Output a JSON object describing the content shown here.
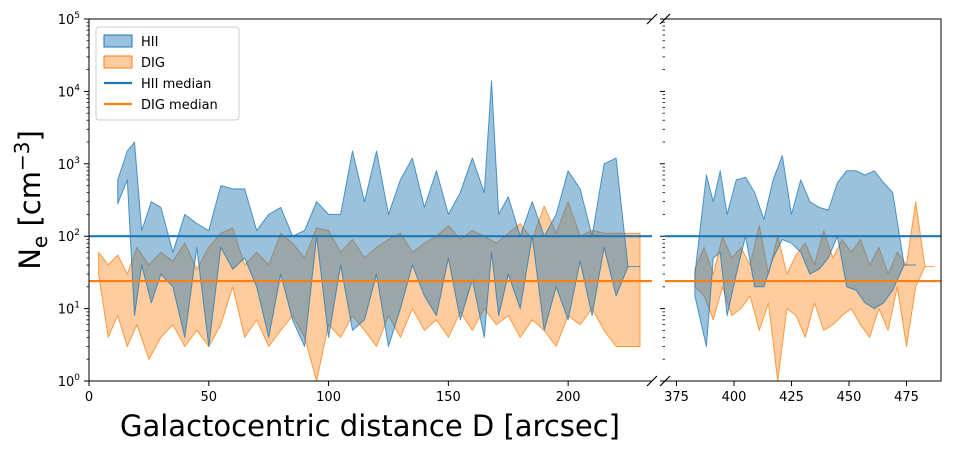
{
  "chart_data": {
    "type": "area",
    "xlabel": "Galactocentric distance D [arcsec]",
    "ylabel_base": "N",
    "ylabel_sub": "e",
    "ylabel_unit_pre": " [cm",
    "ylabel_unit_sup": "−3",
    "ylabel_unit_post": "]",
    "yscale": "log",
    "ylim": [
      1,
      100000
    ],
    "y_ticks": [
      {
        "value": 1,
        "base": "10",
        "exp": "0"
      },
      {
        "value": 10,
        "base": "10",
        "exp": "1"
      },
      {
        "value": 100,
        "base": "10",
        "exp": "2"
      },
      {
        "value": 1000,
        "base": "10",
        "exp": "3"
      },
      {
        "value": 10000,
        "base": "10",
        "exp": "4"
      },
      {
        "value": 100000,
        "base": "10",
        "exp": "5"
      }
    ],
    "broken_x_axis": true,
    "left_panel": {
      "xlim": [
        0,
        235
      ],
      "x_ticks": [
        0,
        50,
        100,
        150,
        200
      ]
    },
    "right_panel": {
      "xlim": [
        370,
        490
      ],
      "x_ticks": [
        375,
        400,
        425,
        450,
        475
      ]
    },
    "legend": {
      "position": "upper left",
      "entries": [
        {
          "label": "HII",
          "kind": "area",
          "color": "#1f77b4"
        },
        {
          "label": "DIG",
          "kind": "area",
          "color": "#ff7f0e"
        },
        {
          "label": "HII median",
          "kind": "line",
          "color": "#1f77b4"
        },
        {
          "label": "DIG median",
          "kind": "line",
          "color": "#ff7f0e"
        }
      ]
    },
    "medians": {
      "HII": 100,
      "DIG": 24
    },
    "colors": {
      "HII": "#1f77b4",
      "DIG": "#ff7f0e"
    },
    "series": [
      {
        "name": "HII",
        "panel": "left",
        "x": [
          12,
          16,
          19,
          22,
          26,
          30,
          35,
          40,
          45,
          50,
          55,
          60,
          65,
          70,
          75,
          80,
          85,
          90,
          95,
          100,
          105,
          110,
          115,
          120,
          125,
          130,
          135,
          140,
          145,
          150,
          155,
          160,
          165,
          168,
          171,
          175,
          180,
          185,
          190,
          195,
          200,
          205,
          210,
          215,
          220,
          225,
          230
        ],
        "lower": [
          280,
          600,
          8,
          40,
          12,
          30,
          20,
          4,
          70,
          3,
          70,
          35,
          50,
          20,
          4,
          30,
          7,
          3,
          100,
          4,
          40,
          5,
          7,
          30,
          3,
          10,
          40,
          15,
          8,
          50,
          7,
          25,
          4,
          60,
          8,
          30,
          10,
          100,
          5,
          20,
          7,
          45,
          8,
          70,
          15,
          38,
          38
        ],
        "upper": [
          600,
          1500,
          2000,
          120,
          300,
          250,
          60,
          200,
          150,
          120,
          500,
          450,
          450,
          120,
          200,
          250,
          100,
          120,
          300,
          200,
          200,
          1500,
          300,
          1500,
          200,
          600,
          1200,
          250,
          800,
          200,
          400,
          1200,
          400,
          14000,
          200,
          350,
          100,
          300,
          100,
          200,
          800,
          450,
          100,
          1000,
          1200,
          38,
          38
        ]
      },
      {
        "name": "DIG",
        "panel": "left",
        "x": [
          4,
          8,
          12,
          16,
          20,
          25,
          30,
          35,
          40,
          45,
          50,
          55,
          60,
          65,
          70,
          75,
          80,
          85,
          90,
          95,
          100,
          105,
          110,
          115,
          120,
          125,
          130,
          135,
          140,
          145,
          150,
          155,
          160,
          165,
          170,
          175,
          180,
          185,
          190,
          195,
          200,
          205,
          210,
          215,
          220,
          225,
          230
        ],
        "lower": [
          30,
          4,
          8,
          3,
          6,
          2,
          4,
          6,
          3,
          5,
          3,
          6,
          20,
          4,
          7,
          3,
          5,
          8,
          4,
          1,
          6,
          4,
          8,
          5,
          3,
          8,
          4,
          10,
          5,
          7,
          4,
          9,
          5,
          10,
          6,
          8,
          4,
          7,
          5,
          3,
          8,
          6,
          10,
          5,
          3,
          3,
          3
        ],
        "upper": [
          60,
          40,
          55,
          30,
          70,
          40,
          60,
          45,
          80,
          35,
          70,
          110,
          130,
          40,
          60,
          40,
          110,
          80,
          50,
          130,
          120,
          60,
          90,
          50,
          70,
          90,
          110,
          60,
          80,
          100,
          140,
          90,
          120,
          100,
          80,
          110,
          150,
          90,
          260,
          110,
          300,
          100,
          120,
          110,
          110,
          110,
          110
        ]
      },
      {
        "name": "HII",
        "panel": "right",
        "x": [
          383,
          388,
          391,
          394,
          397,
          401,
          405,
          409,
          413,
          417,
          421,
          425,
          429,
          433,
          437,
          441,
          445,
          449,
          453,
          457,
          461,
          465,
          469,
          474,
          479
        ],
        "lower": [
          15,
          3,
          50,
          60,
          8,
          30,
          100,
          20,
          20,
          50,
          90,
          80,
          60,
          30,
          35,
          50,
          100,
          20,
          18,
          12,
          10,
          12,
          18,
          40,
          40
        ],
        "upper": [
          30,
          700,
          300,
          800,
          200,
          600,
          650,
          400,
          170,
          600,
          1300,
          200,
          600,
          300,
          250,
          230,
          550,
          800,
          800,
          700,
          800,
          550,
          400,
          40,
          40
        ]
      },
      {
        "name": "DIG",
        "panel": "right",
        "x": [
          383,
          387,
          391,
          395,
          399,
          403,
          407,
          411,
          415,
          419,
          423,
          427,
          431,
          435,
          439,
          443,
          447,
          451,
          455,
          459,
          463,
          467,
          471,
          475,
          479,
          483,
          487
        ],
        "lower": [
          20,
          15,
          7,
          20,
          8,
          10,
          15,
          5,
          12,
          1,
          10,
          8,
          4,
          12,
          5,
          6,
          8,
          10,
          6,
          4,
          10,
          5,
          20,
          3,
          20,
          38,
          38
        ],
        "upper": [
          35,
          70,
          30,
          100,
          50,
          70,
          40,
          140,
          30,
          100,
          30,
          55,
          80,
          40,
          120,
          50,
          90,
          60,
          90,
          40,
          70,
          30,
          60,
          40,
          300,
          38,
          38
        ]
      }
    ]
  }
}
